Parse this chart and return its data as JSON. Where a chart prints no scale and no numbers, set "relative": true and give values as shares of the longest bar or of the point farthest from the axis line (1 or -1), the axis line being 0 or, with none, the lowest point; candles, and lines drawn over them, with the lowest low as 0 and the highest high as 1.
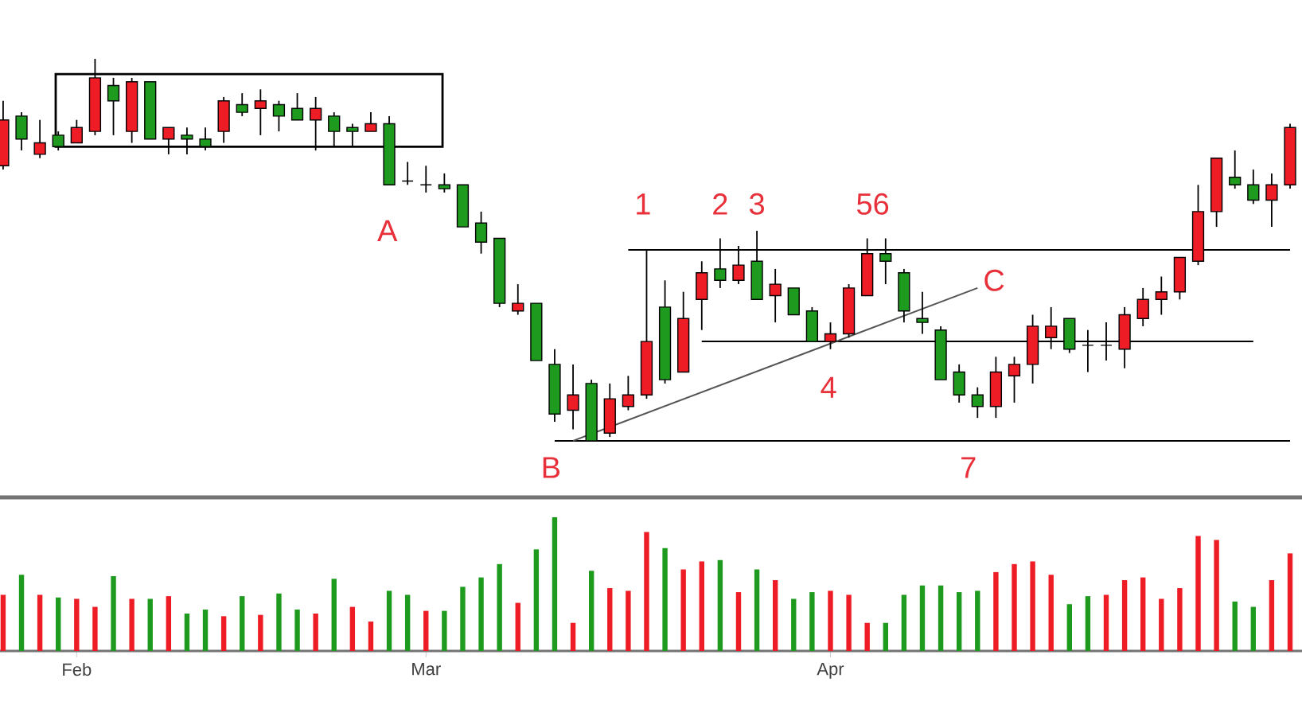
{
  "chart_data": [
    {
      "type": "candlestick",
      "relative": true,
      "categories": [
        null,
        null,
        null,
        null,
        null,
        null,
        null,
        null,
        null,
        null,
        null,
        null,
        null,
        null,
        null,
        null,
        null,
        null,
        null,
        null,
        null,
        null,
        null,
        null,
        null,
        null,
        null,
        null,
        null,
        null,
        null,
        null,
        null,
        null,
        null,
        null,
        null,
        null,
        null,
        null,
        null,
        null,
        null,
        null,
        null,
        null,
        null,
        null,
        null,
        null,
        null,
        null,
        null,
        null,
        null,
        null,
        null,
        null,
        null,
        null,
        null,
        null,
        null,
        null,
        null,
        null,
        null,
        null,
        null,
        null,
        null
      ],
      "ohlc": [
        [
          0.72,
          0.89,
          0.71,
          0.84
        ],
        [
          0.85,
          0.86,
          0.76,
          0.79
        ],
        [
          0.75,
          0.84,
          0.74,
          0.78
        ],
        [
          0.8,
          0.81,
          0.76,
          0.77
        ],
        [
          0.78,
          0.84,
          0.78,
          0.82
        ],
        [
          0.81,
          1,
          0.8,
          0.95
        ],
        [
          0.93,
          0.95,
          0.8,
          0.89
        ],
        [
          0.81,
          0.95,
          0.78,
          0.94
        ],
        [
          0.94,
          0.94,
          0.79,
          0.79
        ],
        [
          0.79,
          0.82,
          0.75,
          0.82
        ],
        [
          0.8,
          0.82,
          0.75,
          0.79
        ],
        [
          0.79,
          0.82,
          0.76,
          0.77
        ],
        [
          0.81,
          0.9,
          0.78,
          0.89
        ],
        [
          0.88,
          0.91,
          0.85,
          0.86
        ],
        [
          0.87,
          0.92,
          0.8,
          0.89
        ],
        [
          0.88,
          0.89,
          0.81,
          0.85
        ],
        [
          0.87,
          0.91,
          0.84,
          0.84
        ],
        [
          0.84,
          0.9,
          0.76,
          0.87
        ],
        [
          0.85,
          0.86,
          0.77,
          0.81
        ],
        [
          0.82,
          0.83,
          0.77,
          0.81
        ],
        [
          0.81,
          0.86,
          0.81,
          0.83
        ],
        [
          0.83,
          0.85,
          0.67,
          0.67
        ],
        [
          0.68,
          0.73,
          0.67,
          0.68
        ],
        [
          0.67,
          0.72,
          0.65,
          0.67
        ],
        [
          0.67,
          0.7,
          0.65,
          0.66
        ],
        [
          0.67,
          0.67,
          0.56,
          0.56
        ],
        [
          0.57,
          0.6,
          0.49,
          0.52
        ],
        [
          0.53,
          0.53,
          0.35,
          0.36
        ],
        [
          0.34,
          0.41,
          0.33,
          0.36
        ],
        [
          0.36,
          0.36,
          0.21,
          0.21
        ],
        [
          0.2,
          0.24,
          0.05,
          0.07
        ],
        [
          0.08,
          0.2,
          0.03,
          0.12
        ],
        [
          0.15,
          0.16,
          0,
          0.0
        ],
        [
          0.02,
          0.15,
          0.01,
          0.11
        ],
        [
          0.09,
          0.17,
          0.08,
          0.12
        ],
        [
          0.12,
          0.5,
          0.11,
          0.26
        ],
        [
          0.35,
          0.42,
          0.15,
          0.16
        ],
        [
          0.18,
          0.39,
          0.18,
          0.32
        ],
        [
          0.37,
          0.47,
          0.29,
          0.44
        ],
        [
          0.45,
          0.53,
          0.4,
          0.42
        ],
        [
          0.42,
          0.51,
          0.41,
          0.46
        ],
        [
          0.47,
          0.55,
          0.37,
          0.37
        ],
        [
          0.38,
          0.45,
          0.31,
          0.41
        ],
        [
          0.4,
          0.4,
          0.33,
          0.33
        ],
        [
          0.34,
          0.35,
          0.26,
          0.26
        ],
        [
          0.26,
          0.31,
          0.24,
          0.28
        ],
        [
          0.28,
          0.41,
          0.27,
          0.4
        ],
        [
          0.38,
          0.53,
          0.38,
          0.49
        ],
        [
          0.49,
          0.53,
          0.41,
          0.47
        ],
        [
          0.44,
          0.45,
          0.31,
          0.34
        ],
        [
          0.32,
          0.39,
          0.28,
          0.31
        ],
        [
          0.29,
          0.3,
          0.16,
          0.16
        ],
        [
          0.18,
          0.2,
          0.1,
          0.12
        ],
        [
          0.12,
          0.14,
          0.06,
          0.09
        ],
        [
          0.09,
          0.22,
          0.06,
          0.18
        ],
        [
          0.17,
          0.22,
          0.1,
          0.2
        ],
        [
          0.2,
          0.33,
          0.15,
          0.3
        ],
        [
          0.27,
          0.35,
          0.24,
          0.3
        ],
        [
          0.32,
          0.32,
          0.23,
          0.24
        ],
        [
          0.25,
          0.29,
          0.18,
          0.25
        ],
        [
          0.25,
          0.31,
          0.21,
          0.25
        ],
        [
          0.24,
          0.35,
          0.19,
          0.33
        ],
        [
          0.32,
          0.4,
          0.3,
          0.37
        ],
        [
          0.37,
          0.43,
          0.33,
          0.39
        ],
        [
          0.39,
          0.48,
          0.37,
          0.48
        ],
        [
          0.47,
          0.67,
          0.46,
          0.6
        ],
        [
          0.6,
          0.74,
          0.56,
          0.74
        ],
        [
          0.69,
          0.76,
          0.66,
          0.67
        ],
        [
          0.67,
          0.71,
          0.62,
          0.63
        ],
        [
          0.63,
          0.7,
          0.56,
          0.67
        ],
        [
          0.67,
          0.83,
          0.66,
          0.82
        ]
      ],
      "colors": [
        "#ee1c24",
        "#1e9b1e",
        "#ee1c24",
        "#1e9b1e",
        "#ee1c24",
        "#ee1c24",
        "#1e9b1e",
        "#ee1c24",
        "#1e9b1e",
        "#ee1c24",
        "#1e9b1e",
        "#1e9b1e",
        "#ee1c24",
        "#1e9b1e",
        "#ee1c24",
        "#1e9b1e",
        "#1e9b1e",
        "#ee1c24",
        "#1e9b1e",
        "#1e9b1e",
        "#ee1c24",
        "#1e9b1e",
        "#000000",
        "#000000",
        "#1e9b1e",
        "#1e9b1e",
        "#1e9b1e",
        "#1e9b1e",
        "#ee1c24",
        "#1e9b1e",
        "#1e9b1e",
        "#ee1c24",
        "#1e9b1e",
        "#ee1c24",
        "#ee1c24",
        "#ee1c24",
        "#1e9b1e",
        "#ee1c24",
        "#ee1c24",
        "#1e9b1e",
        "#ee1c24",
        "#1e9b1e",
        "#ee1c24",
        "#1e9b1e",
        "#1e9b1e",
        "#ee1c24",
        "#ee1c24",
        "#ee1c24",
        "#1e9b1e",
        "#1e9b1e",
        "#1e9b1e",
        "#1e9b1e",
        "#1e9b1e",
        "#1e9b1e",
        "#ee1c24",
        "#ee1c24",
        "#ee1c24",
        "#ee1c24",
        "#1e9b1e",
        "#000000",
        "#000000",
        "#ee1c24",
        "#ee1c24",
        "#ee1c24",
        "#ee1c24",
        "#ee1c24",
        "#ee1c24",
        "#1e9b1e",
        "#1e9b1e",
        "#ee1c24",
        "#ee1c24"
      ],
      "series": [
        {
          "type": "line",
          "color": "#000000",
          "values": [
            null,
            null,
            null,
            null,
            null,
            null,
            null,
            null,
            null,
            null,
            null,
            null,
            null,
            null,
            null,
            null,
            null,
            null,
            null,
            null,
            null,
            null,
            null,
            null,
            null,
            null,
            null,
            null,
            null,
            null,
            null,
            null,
            null,
            null,
            0.5,
            null,
            null,
            null,
            null,
            null,
            null,
            null,
            null,
            null,
            null,
            null,
            null,
            null,
            null,
            null,
            null,
            null,
            null,
            null,
            null,
            null,
            null,
            null,
            null,
            null,
            null,
            null,
            null,
            null,
            null,
            null,
            null,
            null,
            null,
            null,
            0.5
          ]
        },
        {
          "type": "line",
          "color": "#000000",
          "values": [
            null,
            null,
            null,
            null,
            null,
            null,
            null,
            null,
            null,
            null,
            null,
            null,
            null,
            null,
            null,
            null,
            null,
            null,
            null,
            null,
            null,
            null,
            null,
            null,
            null,
            null,
            null,
            null,
            null,
            null,
            null,
            null,
            null,
            null,
            null,
            null,
            null,
            null,
            0.26,
            null,
            null,
            null,
            null,
            null,
            null,
            null,
            null,
            null,
            null,
            null,
            null,
            null,
            null,
            null,
            null,
            null,
            null,
            null,
            null,
            null,
            null,
            null,
            null,
            null,
            null,
            null,
            null,
            null,
            0.26,
            null,
            null
          ]
        },
        {
          "type": "line",
          "color": "#000000",
          "values": [
            null,
            null,
            null,
            null,
            null,
            null,
            null,
            null,
            null,
            null,
            null,
            null,
            null,
            null,
            null,
            null,
            null,
            null,
            null,
            null,
            null,
            null,
            null,
            null,
            null,
            null,
            null,
            null,
            null,
            null,
            0,
            null,
            null,
            null,
            null,
            null,
            null,
            null,
            null,
            null,
            null,
            null,
            null,
            null,
            null,
            null,
            null,
            null,
            null,
            null,
            null,
            null,
            null,
            null,
            null,
            null,
            null,
            null,
            null,
            null,
            null,
            null,
            null,
            null,
            null,
            null,
            null,
            null,
            null,
            null,
            0
          ]
        },
        {
          "type": "line",
          "color": "#555555",
          "values": [
            null,
            null,
            null,
            null,
            null,
            null,
            null,
            null,
            null,
            null,
            null,
            null,
            null,
            null,
            null,
            null,
            null,
            null,
            null,
            null,
            null,
            null,
            null,
            null,
            null,
            null,
            null,
            null,
            null,
            null,
            null,
            0,
            null,
            null,
            null,
            null,
            null,
            null,
            null,
            null,
            null,
            null,
            null,
            null,
            null,
            null,
            null,
            null,
            null,
            null,
            null,
            null,
            null,
            0.4,
            null,
            null,
            null,
            null,
            null,
            null,
            null,
            null,
            null,
            null,
            null,
            null,
            null,
            null,
            null,
            null,
            null
          ]
        }
      ],
      "annotations": [
        "1",
        "2",
        "3",
        "56",
        "A",
        "B",
        "C",
        "4",
        "7"
      ]
    },
    {
      "type": "bar",
      "relative": true,
      "categories": [
        null,
        null,
        null,
        null,
        "Feb",
        null,
        null,
        null,
        null,
        null,
        null,
        null,
        null,
        null,
        null,
        null,
        null,
        null,
        null,
        null,
        null,
        null,
        null,
        "Mar",
        null,
        null,
        null,
        null,
        null,
        null,
        null,
        null,
        null,
        null,
        null,
        null,
        null,
        null,
        null,
        null,
        null,
        null,
        null,
        null,
        null,
        "Apr",
        null,
        null,
        null,
        null,
        null,
        null,
        null,
        null,
        null,
        null,
        null,
        null,
        null,
        null,
        null,
        null,
        null,
        null,
        null,
        null,
        null,
        null,
        null,
        null,
        null
      ],
      "values": [
        0.42,
        0.57,
        0.42,
        0.4,
        0.39,
        0.33,
        0.56,
        0.39,
        0.39,
        0.41,
        0.28,
        0.31,
        0.26,
        0.41,
        0.27,
        0.43,
        0.31,
        0.28,
        0.54,
        0.33,
        0.22,
        0.45,
        0.42,
        0.3,
        0.3,
        0.48,
        0.55,
        0.65,
        0.36,
        0.76,
        1,
        0.21,
        0.6,
        0.47,
        0.45,
        0.89,
        0.77,
        0.61,
        0.67,
        0.68,
        0.44,
        0.61,
        0.53,
        0.39,
        0.44,
        0.45,
        0.42,
        0.21,
        0.21,
        0.42,
        0.49,
        0.49,
        0.44,
        0.45,
        0.59,
        0.65,
        0.67,
        0.57,
        0.35,
        0.41,
        0.42,
        0.53,
        0.55,
        0.39,
        0.47,
        0.86,
        0.83,
        0.37,
        0.33,
        0.53,
        0.73
      ],
      "colors": [
        "#ee1c24",
        "#1e9b1e",
        "#ee1c24",
        "#1e9b1e",
        "#ee1c24",
        "#ee1c24",
        "#1e9b1e",
        "#ee1c24",
        "#1e9b1e",
        "#ee1c24",
        "#1e9b1e",
        "#1e9b1e",
        "#ee1c24",
        "#1e9b1e",
        "#ee1c24",
        "#1e9b1e",
        "#1e9b1e",
        "#ee1c24",
        "#1e9b1e",
        "#ee1c24",
        "#ee1c24",
        "#1e9b1e",
        "#1e9b1e",
        "#ee1c24",
        "#1e9b1e",
        "#1e9b1e",
        "#1e9b1e",
        "#1e9b1e",
        "#ee1c24",
        "#1e9b1e",
        "#1e9b1e",
        "#ee1c24",
        "#1e9b1e",
        "#ee1c24",
        "#ee1c24",
        "#ee1c24",
        "#1e9b1e",
        "#ee1c24",
        "#ee1c24",
        "#1e9b1e",
        "#ee1c24",
        "#1e9b1e",
        "#ee1c24",
        "#1e9b1e",
        "#1e9b1e",
        "#ee1c24",
        "#ee1c24",
        "#ee1c24",
        "#1e9b1e",
        "#1e9b1e",
        "#1e9b1e",
        "#1e9b1e",
        "#1e9b1e",
        "#1e9b1e",
        "#ee1c24",
        "#ee1c24",
        "#ee1c24",
        "#ee1c24",
        "#1e9b1e",
        "#1e9b1e",
        "#ee1c24",
        "#ee1c24",
        "#ee1c24",
        "#ee1c24",
        "#ee1c24",
        "#ee1c24",
        "#ee1c24",
        "#1e9b1e",
        "#1e9b1e",
        "#ee1c24",
        "#ee1c24"
      ]
    }
  ]
}
